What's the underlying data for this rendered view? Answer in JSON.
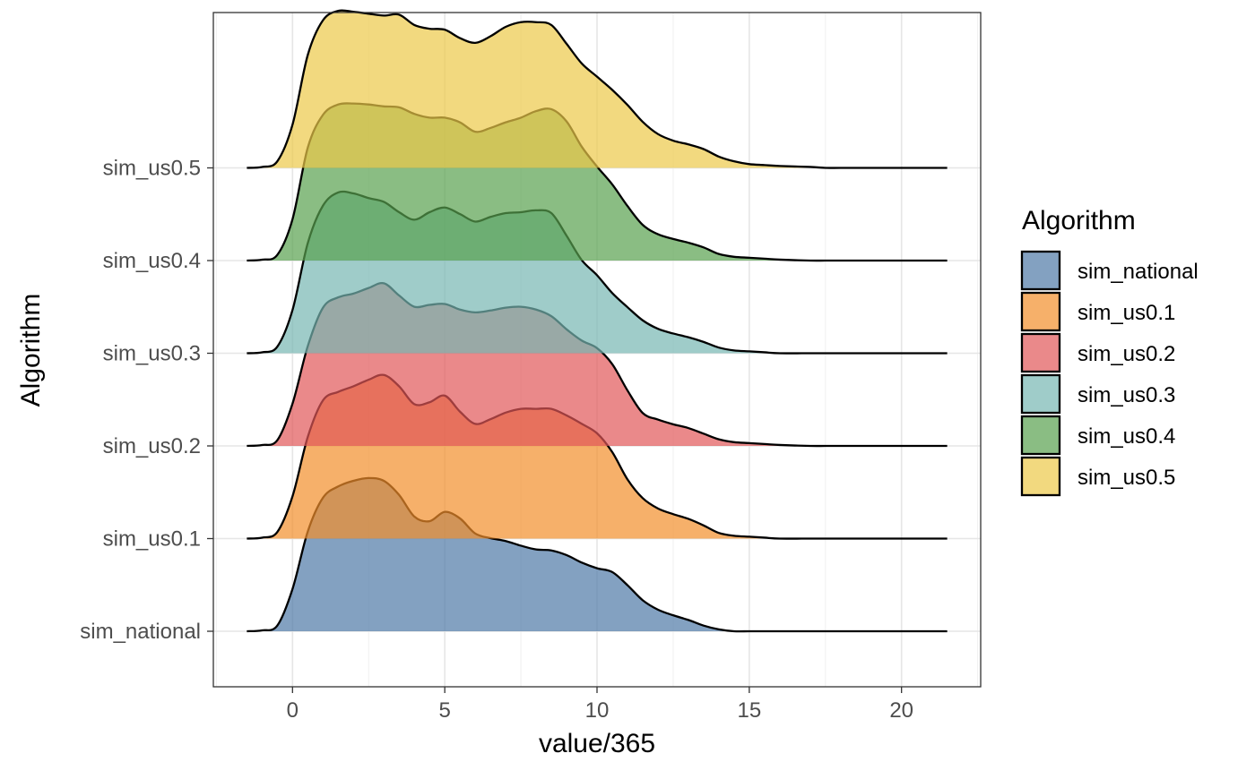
{
  "chart_data": {
    "type": "area",
    "subtype": "ridgeline",
    "xlabel": "value/365",
    "ylabel": "Algorithm",
    "xlim": [
      -2.6,
      22.6
    ],
    "x_ticks": [
      0,
      5,
      10,
      15,
      20
    ],
    "x_tick_labels": [
      "0",
      "5",
      "10",
      "15",
      "20"
    ],
    "categories": [
      "sim_national",
      "sim_us0.1",
      "sim_us0.2",
      "sim_us0.3",
      "sim_us0.4",
      "sim_us0.5"
    ],
    "y_tick_labels": [
      "sim_national",
      "sim_us0.1",
      "sim_us0.2",
      "sim_us0.3",
      "sim_us0.4",
      "sim_us0.5"
    ],
    "grid": true,
    "legend": {
      "title": "Algorithm",
      "position": "right",
      "labels": [
        "sim_national",
        "sim_us0.1",
        "sim_us0.2",
        "sim_us0.3",
        "sim_us0.4",
        "sim_us0.5"
      ]
    },
    "series": [
      {
        "name": "sim_national",
        "color": "#4E79A7",
        "points": [
          [
            -1.5,
            0
          ],
          [
            -1,
            0.01
          ],
          [
            -0.5,
            0.06
          ],
          [
            0,
            0.45
          ],
          [
            0.5,
            1.06
          ],
          [
            1,
            1.42
          ],
          [
            1.5,
            1.54
          ],
          [
            2,
            1.6
          ],
          [
            2.5,
            1.63
          ],
          [
            3,
            1.6
          ],
          [
            3.5,
            1.45
          ],
          [
            4,
            1.22
          ],
          [
            4.5,
            1.17
          ],
          [
            5,
            1.27
          ],
          [
            5.5,
            1.2
          ],
          [
            6,
            1.04
          ],
          [
            6.5,
            0.99
          ],
          [
            7,
            0.96
          ],
          [
            7.5,
            0.91
          ],
          [
            8,
            0.87
          ],
          [
            8.5,
            0.86
          ],
          [
            9,
            0.81
          ],
          [
            9.5,
            0.73
          ],
          [
            10,
            0.67
          ],
          [
            10.5,
            0.63
          ],
          [
            11,
            0.49
          ],
          [
            11.5,
            0.33
          ],
          [
            12,
            0.23
          ],
          [
            12.5,
            0.17
          ],
          [
            13,
            0.12
          ],
          [
            13.5,
            0.06
          ],
          [
            14,
            0.02
          ],
          [
            14.5,
            0.0
          ],
          [
            15,
            0.0
          ],
          [
            15.5,
            0.0
          ],
          [
            16,
            0.0
          ],
          [
            17,
            0.0
          ],
          [
            17.5,
            0.0
          ],
          [
            18,
            0.0
          ],
          [
            19,
            0.0
          ],
          [
            20,
            0.0
          ],
          [
            21.5,
            0.0
          ]
        ]
      },
      {
        "name": "sim_us0.1",
        "color": "#F28E2B",
        "points": [
          [
            -1.5,
            0
          ],
          [
            -1,
            0.01
          ],
          [
            -0.5,
            0.07
          ],
          [
            0,
            0.45
          ],
          [
            0.5,
            1.08
          ],
          [
            1,
            1.47
          ],
          [
            1.5,
            1.56
          ],
          [
            2,
            1.62
          ],
          [
            2.5,
            1.69
          ],
          [
            3,
            1.74
          ],
          [
            3.5,
            1.62
          ],
          [
            4,
            1.43
          ],
          [
            4.5,
            1.45
          ],
          [
            5,
            1.52
          ],
          [
            5.5,
            1.35
          ],
          [
            6,
            1.22
          ],
          [
            6.5,
            1.27
          ],
          [
            7,
            1.34
          ],
          [
            7.5,
            1.38
          ],
          [
            8,
            1.38
          ],
          [
            8.5,
            1.38
          ],
          [
            9,
            1.31
          ],
          [
            9.5,
            1.22
          ],
          [
            10,
            1.12
          ],
          [
            10.5,
            0.92
          ],
          [
            11,
            0.63
          ],
          [
            11.5,
            0.43
          ],
          [
            12,
            0.32
          ],
          [
            12.5,
            0.26
          ],
          [
            13,
            0.21
          ],
          [
            13.5,
            0.14
          ],
          [
            14,
            0.06
          ],
          [
            14.5,
            0.03
          ],
          [
            15,
            0.02
          ],
          [
            15.5,
            0.01
          ],
          [
            16,
            0.0
          ],
          [
            17,
            0.0
          ],
          [
            17.5,
            0.0
          ],
          [
            18,
            0.0
          ],
          [
            19,
            0.0
          ],
          [
            20,
            0.0
          ],
          [
            21.5,
            0.0
          ]
        ]
      },
      {
        "name": "sim_us0.2",
        "color": "#E15759",
        "points": [
          [
            -1.5,
            0
          ],
          [
            -1,
            0.01
          ],
          [
            -0.5,
            0.06
          ],
          [
            0,
            0.45
          ],
          [
            0.5,
            1.06
          ],
          [
            1,
            1.47
          ],
          [
            1.5,
            1.58
          ],
          [
            2,
            1.62
          ],
          [
            2.5,
            1.68
          ],
          [
            3,
            1.73
          ],
          [
            3.5,
            1.6
          ],
          [
            4,
            1.48
          ],
          [
            4.5,
            1.5
          ],
          [
            5,
            1.51
          ],
          [
            5.5,
            1.45
          ],
          [
            6,
            1.42
          ],
          [
            6.5,
            1.44
          ],
          [
            7,
            1.47
          ],
          [
            7.5,
            1.48
          ],
          [
            8,
            1.45
          ],
          [
            8.5,
            1.38
          ],
          [
            9,
            1.24
          ],
          [
            9.5,
            1.12
          ],
          [
            10,
            1.04
          ],
          [
            10.5,
            0.87
          ],
          [
            11,
            0.59
          ],
          [
            11.5,
            0.35
          ],
          [
            12,
            0.28
          ],
          [
            12.5,
            0.23
          ],
          [
            13,
            0.19
          ],
          [
            13.5,
            0.13
          ],
          [
            14,
            0.07
          ],
          [
            14.5,
            0.04
          ],
          [
            15,
            0.03
          ],
          [
            15.5,
            0.02
          ],
          [
            16,
            0.01
          ],
          [
            17,
            0.0
          ],
          [
            17.5,
            0.0
          ],
          [
            18,
            0.0
          ],
          [
            19,
            0.0
          ],
          [
            20,
            0.0
          ],
          [
            21.5,
            0.0
          ]
        ]
      },
      {
        "name": "sim_us0.3",
        "color": "#76B7B2",
        "points": [
          [
            -1.5,
            0
          ],
          [
            -1,
            0.01
          ],
          [
            -0.5,
            0.07
          ],
          [
            0,
            0.46
          ],
          [
            0.5,
            1.17
          ],
          [
            1,
            1.57
          ],
          [
            1.5,
            1.71
          ],
          [
            2,
            1.7
          ],
          [
            2.5,
            1.65
          ],
          [
            3,
            1.61
          ],
          [
            3.5,
            1.5
          ],
          [
            4,
            1.42
          ],
          [
            4.5,
            1.5
          ],
          [
            5,
            1.55
          ],
          [
            5.5,
            1.48
          ],
          [
            6,
            1.4
          ],
          [
            6.5,
            1.45
          ],
          [
            7,
            1.49
          ],
          [
            7.5,
            1.5
          ],
          [
            8,
            1.52
          ],
          [
            8.5,
            1.49
          ],
          [
            9,
            1.25
          ],
          [
            9.5,
            0.99
          ],
          [
            10,
            0.83
          ],
          [
            10.5,
            0.64
          ],
          [
            11,
            0.49
          ],
          [
            11.5,
            0.35
          ],
          [
            12,
            0.26
          ],
          [
            12.5,
            0.21
          ],
          [
            13,
            0.17
          ],
          [
            13.5,
            0.12
          ],
          [
            14,
            0.06
          ],
          [
            14.5,
            0.03
          ],
          [
            15,
            0.02
          ],
          [
            15.5,
            0.01
          ],
          [
            16,
            0.0
          ],
          [
            17,
            0.0
          ],
          [
            17.5,
            0.0
          ],
          [
            18,
            0.0
          ],
          [
            19,
            0.0
          ],
          [
            20,
            0.0
          ],
          [
            21.5,
            0.0
          ]
        ]
      },
      {
        "name": "sim_us0.4",
        "color": "#59A14F",
        "points": [
          [
            -1.5,
            0
          ],
          [
            -1,
            0.01
          ],
          [
            -0.5,
            0.06
          ],
          [
            0,
            0.44
          ],
          [
            0.5,
            1.2
          ],
          [
            1,
            1.55
          ],
          [
            1.5,
            1.66
          ],
          [
            2,
            1.67
          ],
          [
            2.5,
            1.66
          ],
          [
            3,
            1.64
          ],
          [
            3.5,
            1.63
          ],
          [
            4,
            1.56
          ],
          [
            4.5,
            1.52
          ],
          [
            5,
            1.52
          ],
          [
            5.5,
            1.47
          ],
          [
            6,
            1.37
          ],
          [
            6.5,
            1.41
          ],
          [
            7,
            1.47
          ],
          [
            7.5,
            1.52
          ],
          [
            8,
            1.59
          ],
          [
            8.5,
            1.61
          ],
          [
            9,
            1.48
          ],
          [
            9.5,
            1.21
          ],
          [
            10,
            1.0
          ],
          [
            10.5,
            0.81
          ],
          [
            11,
            0.58
          ],
          [
            11.5,
            0.38
          ],
          [
            12,
            0.28
          ],
          [
            12.5,
            0.23
          ],
          [
            13,
            0.19
          ],
          [
            13.5,
            0.14
          ],
          [
            14,
            0.07
          ],
          [
            14.5,
            0.04
          ],
          [
            15,
            0.03
          ],
          [
            15.5,
            0.02
          ],
          [
            16,
            0.01
          ],
          [
            17,
            0.0
          ],
          [
            17.5,
            0.0
          ],
          [
            18,
            0.0
          ],
          [
            19,
            0.0
          ],
          [
            20,
            0.0
          ],
          [
            21.5,
            0.0
          ]
        ]
      },
      {
        "name": "sim_us0.5",
        "color": "#EDC948",
        "points": [
          [
            -1.5,
            0
          ],
          [
            -1,
            0.01
          ],
          [
            -0.5,
            0.07
          ],
          [
            0,
            0.46
          ],
          [
            0.5,
            1.2
          ],
          [
            1,
            1.57
          ],
          [
            1.5,
            1.67
          ],
          [
            2,
            1.66
          ],
          [
            2.5,
            1.64
          ],
          [
            3,
            1.62
          ],
          [
            3.5,
            1.63
          ],
          [
            4,
            1.52
          ],
          [
            4.5,
            1.48
          ],
          [
            5,
            1.47
          ],
          [
            5.5,
            1.38
          ],
          [
            6,
            1.33
          ],
          [
            6.5,
            1.4
          ],
          [
            7,
            1.5
          ],
          [
            7.5,
            1.55
          ],
          [
            8,
            1.55
          ],
          [
            8.5,
            1.52
          ],
          [
            9,
            1.32
          ],
          [
            9.5,
            1.11
          ],
          [
            10,
            0.97
          ],
          [
            10.5,
            0.83
          ],
          [
            11,
            0.67
          ],
          [
            11.5,
            0.49
          ],
          [
            12,
            0.36
          ],
          [
            12.5,
            0.29
          ],
          [
            13,
            0.25
          ],
          [
            13.5,
            0.2
          ],
          [
            14,
            0.12
          ],
          [
            14.5,
            0.07
          ],
          [
            15,
            0.04
          ],
          [
            15.5,
            0.03
          ],
          [
            16,
            0.02
          ],
          [
            17,
            0.01
          ],
          [
            17.5,
            0.0
          ],
          [
            18,
            0.0
          ],
          [
            19,
            0.0
          ],
          [
            20,
            0.0
          ],
          [
            21.5,
            0.0
          ]
        ]
      }
    ]
  }
}
